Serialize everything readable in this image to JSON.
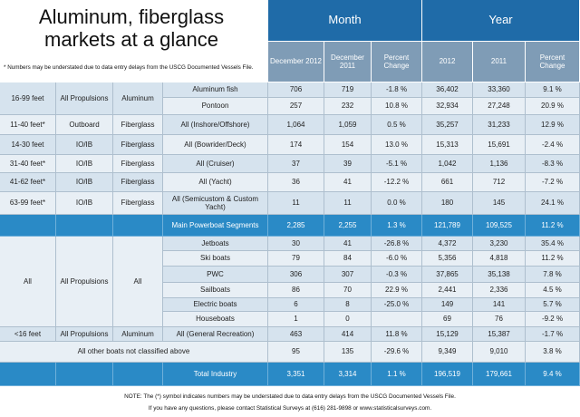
{
  "title": "Aluminum, fiberglass markets at a glance",
  "note": "* Numbers may be understated due to data entry delays from the USCG Documented Vessels File.",
  "group_headers": [
    "Month",
    "Year"
  ],
  "columns": [
    "December 2012",
    "December 2011",
    "Percent Change",
    "2012",
    "2011",
    "Percent Change"
  ],
  "groups": [
    {
      "length": "16-99 feet",
      "propulsion": "All Propulsions",
      "material": "Aluminum",
      "items": [
        {
          "segment": "Aluminum fish",
          "values": [
            "706",
            "719",
            "-1.8 %",
            "36,402",
            "33,360",
            "9.1 %"
          ]
        },
        {
          "segment": "Pontoon",
          "values": [
            "257",
            "232",
            "10.8 %",
            "32,934",
            "27,248",
            "20.9 %"
          ]
        }
      ]
    },
    {
      "length": "11-40 feet*",
      "propulsion": "Outboard",
      "material": "Fiberglass",
      "items": [
        {
          "segment": "All (Inshore/Offshore)",
          "values": [
            "1,064",
            "1,059",
            "0.5 %",
            "35,257",
            "31,233",
            "12.9 %"
          ]
        }
      ]
    },
    {
      "length": "14-30 feet",
      "propulsion": "IO/IB",
      "material": "Fiberglass",
      "items": [
        {
          "segment": "All (Bowrider/Deck)",
          "values": [
            "174",
            "154",
            "13.0 %",
            "15,313",
            "15,691",
            "-2.4 %"
          ]
        }
      ]
    },
    {
      "length": "31-40 feet*",
      "propulsion": "IO/IB",
      "material": "Fiberglass",
      "items": [
        {
          "segment": "All (Cruiser)",
          "values": [
            "37",
            "39",
            "-5.1 %",
            "1,042",
            "1,136",
            "-8.3 %"
          ]
        }
      ]
    },
    {
      "length": "41-62 feet*",
      "propulsion": "IO/IB",
      "material": "Fiberglass",
      "items": [
        {
          "segment": "All (Yacht)",
          "values": [
            "36",
            "41",
            "-12.2 %",
            "661",
            "712",
            "-7.2 %"
          ]
        }
      ]
    },
    {
      "length": "63-99 feet*",
      "propulsion": "IO/IB",
      "material": "Fiberglass",
      "items": [
        {
          "segment": "All (Semicustom & Custom Yacht)",
          "values": [
            "11",
            "11",
            "0.0 %",
            "180",
            "145",
            "24.1 %"
          ]
        }
      ]
    },
    {
      "items": [
        {
          "segment": "Main Powerboat Segments",
          "values": [
            "2,285",
            "2,255",
            "1.3 %",
            "121,789",
            "109,525",
            "11.2 %"
          ]
        }
      ]
    },
    {
      "length": "All",
      "propulsion": "All Propulsions",
      "material": "All",
      "items": [
        {
          "segment": "Jetboats",
          "values": [
            "30",
            "41",
            "-26.8 %",
            "4,372",
            "3,230",
            "35.4 %"
          ]
        },
        {
          "segment": "Ski boats",
          "values": [
            "79",
            "84",
            "-6.0 %",
            "5,356",
            "4,818",
            "11.2 %"
          ]
        },
        {
          "segment": "PWC",
          "values": [
            "306",
            "307",
            "-0.3 %",
            "37,865",
            "35,138",
            "7.8 %"
          ]
        },
        {
          "segment": "Sailboats",
          "values": [
            "86",
            "70",
            "22.9 %",
            "2,441",
            "2,336",
            "4.5 %"
          ]
        },
        {
          "segment": "Electric boats",
          "values": [
            "6",
            "8",
            "-25.0 %",
            "149",
            "141",
            "5.7 %"
          ]
        },
        {
          "segment": "Houseboats",
          "values": [
            "1",
            "0",
            null,
            "69",
            "76",
            "-9.2 %"
          ]
        }
      ]
    },
    {
      "length": "<16 feet",
      "propulsion": "All Propulsions",
      "material": "Aluminum",
      "items": [
        {
          "segment": "All (General Recreation)",
          "values": [
            "463",
            "414",
            "11.8 %",
            "15,129",
            "15,387",
            "-1.7 %"
          ]
        }
      ]
    },
    {
      "label": "All other boats not classified above",
      "items": [
        {
          "values": [
            "95",
            "135",
            "-29.6 %",
            "9,349",
            "9,010",
            "3.8 %"
          ]
        }
      ]
    },
    {
      "items": [
        {
          "segment": "Total Industry",
          "values": [
            "3,351",
            "3,314",
            "1.1 %",
            "196,519",
            "179,661",
            "9.4 %"
          ]
        }
      ]
    }
  ],
  "footer": [
    "NOTE: The (*) symbol indicates numbers may be understated due to data entry delays from the USCG Documented Vessels File.",
    "If you have any questions, please contact Statistical Surveys at (616) 281-9898 or www.statisticalsurveys.com."
  ]
}
